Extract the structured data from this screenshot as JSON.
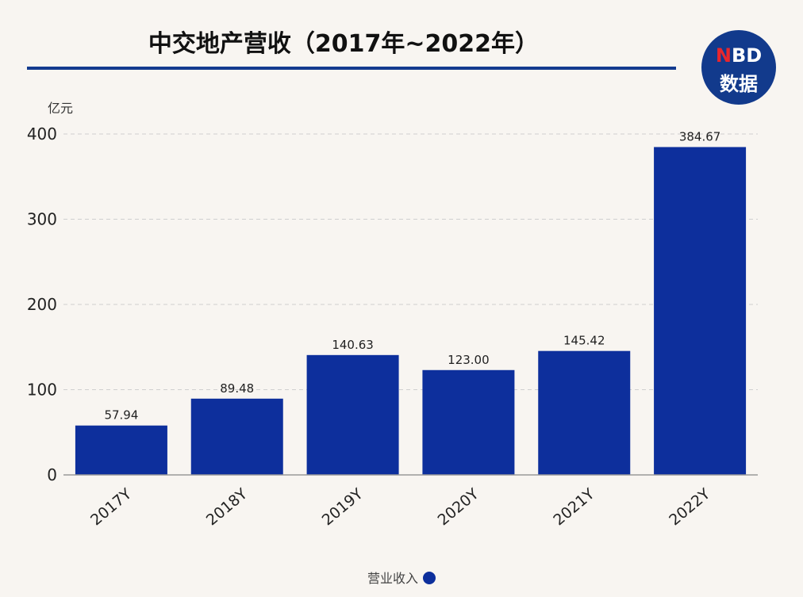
{
  "logo": {
    "line1_n": "N",
    "line1_rest": "BD",
    "line2": "数据"
  },
  "legend_label": "营业收入",
  "colors": {
    "bar": "#0d2f9c",
    "accent": "#133b8f",
    "logo_red": "#e8262d"
  },
  "chart_data": {
    "type": "bar",
    "title": "中交地产营收（2017年~2022年）",
    "ylabel": "亿元",
    "ylim": [
      0,
      400
    ],
    "yticks": [
      0,
      100,
      200,
      300,
      400
    ],
    "categories": [
      "2017Y",
      "2018Y",
      "2019Y",
      "2020Y",
      "2021Y",
      "2022Y"
    ],
    "series": [
      {
        "name": "营业收入",
        "values": [
          57.94,
          89.48,
          140.63,
          123.0,
          145.42,
          384.67
        ]
      }
    ],
    "value_labels": [
      "57.94",
      "89.48",
      "140.63",
      "123.00",
      "145.42",
      "384.67"
    ],
    "grid": true,
    "legend": "bottom-center"
  }
}
